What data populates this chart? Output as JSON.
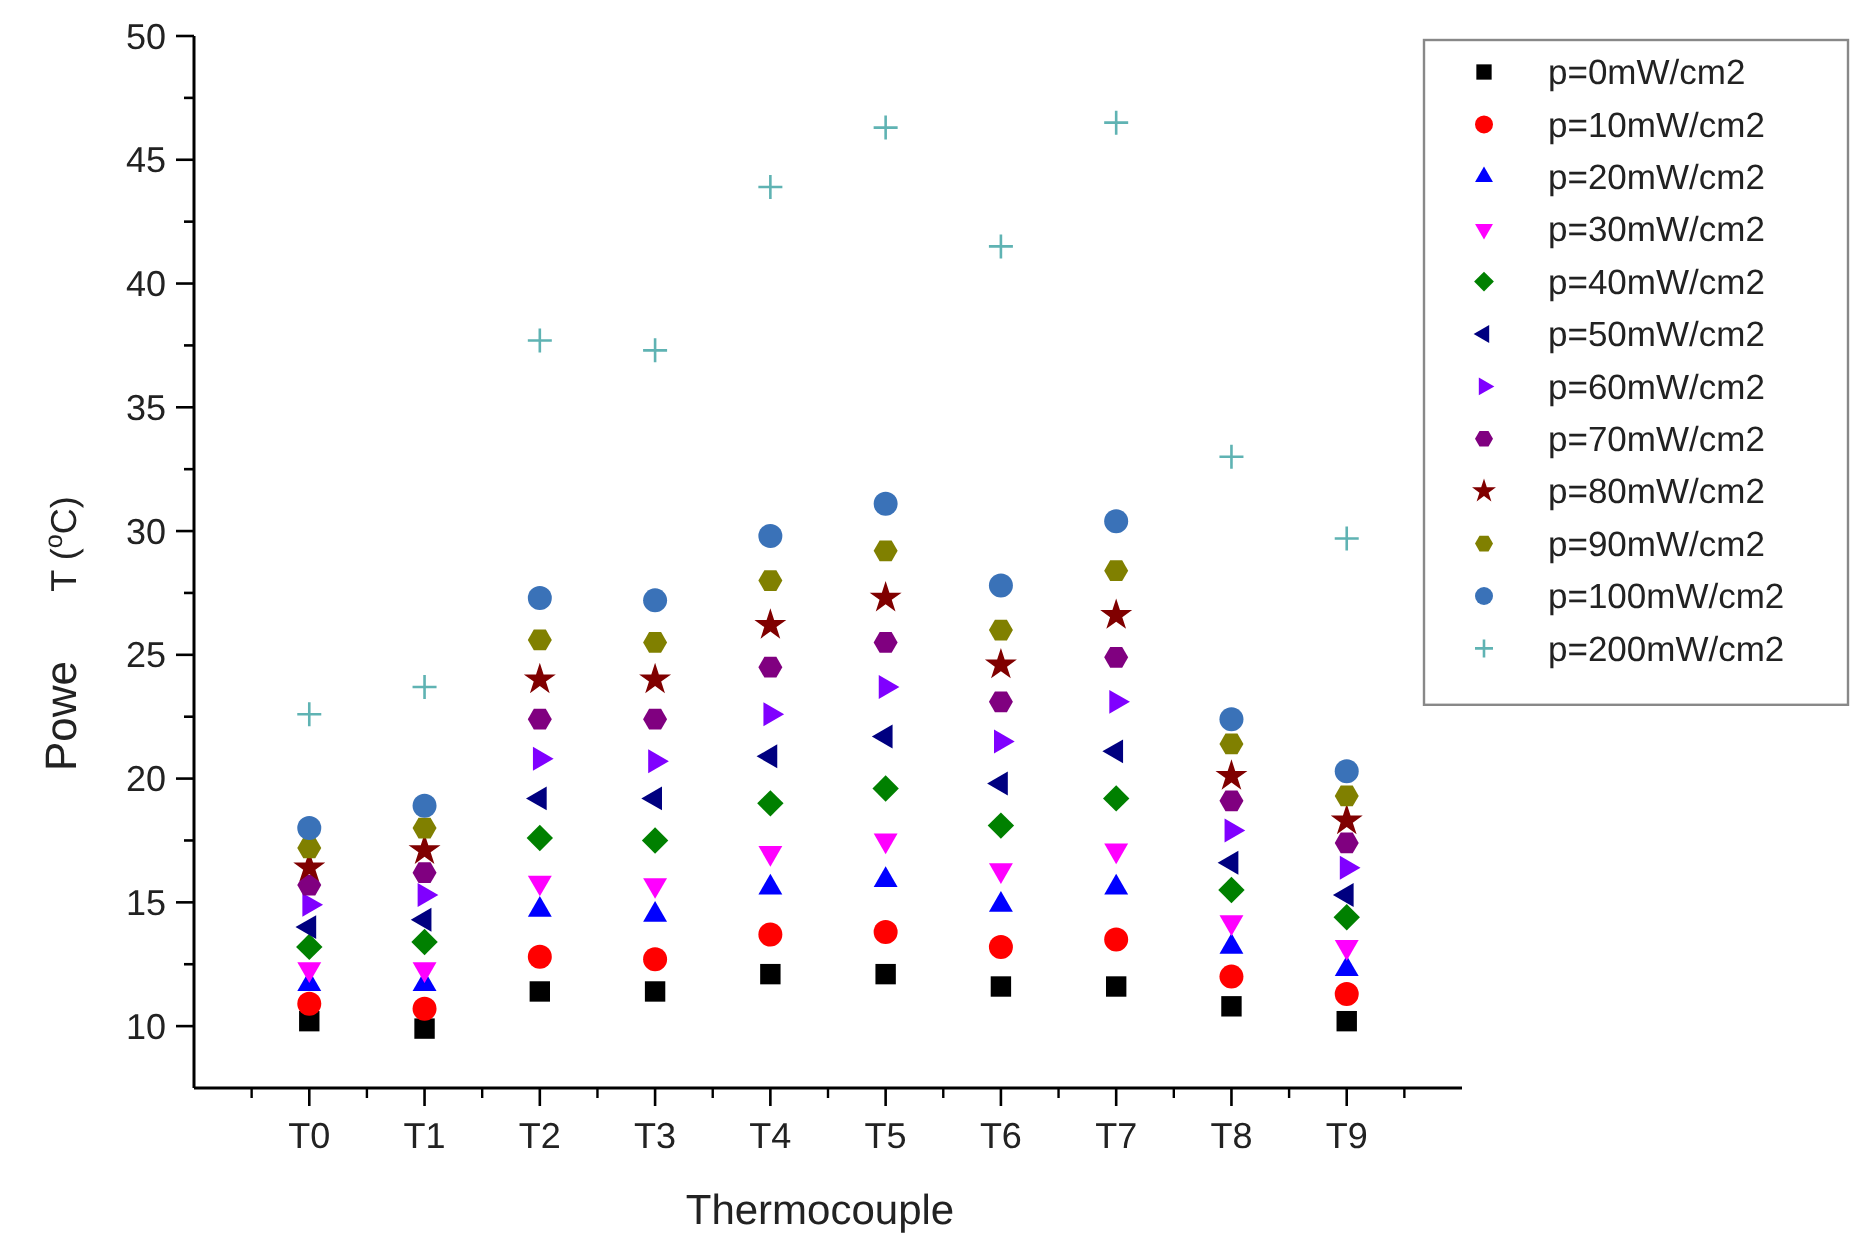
{
  "chart_data": {
    "type": "scatter",
    "xlabel": "Thermocouple",
    "ylabel": "T ($^{o}$C)",
    "annotations": [
      "Powe"
    ],
    "categories": [
      "T0",
      "T1",
      "T2",
      "T3",
      "T4",
      "T5",
      "T6",
      "T7",
      "T8",
      "T9"
    ],
    "ylim": [
      7.5,
      50
    ],
    "yticks": [
      10,
      {
        "value": 12.5,
        "label": null
      },
      15,
      {
        "value": 17.5,
        "label": null
      },
      20,
      {
        "value": 22.5,
        "label": null
      },
      25,
      {
        "value": 27.5,
        "label": null
      },
      30,
      {
        "value": 32.5,
        "label": null
      },
      35,
      {
        "value": 37.5,
        "label": null
      },
      40,
      {
        "value": 42.5,
        "label": null
      },
      45,
      {
        "value": 47.5,
        "label": null
      },
      50
    ],
    "legend": "right",
    "grid": false,
    "series": [
      {
        "name": "p=0mW/cm2",
        "color": "#000000",
        "marker": "square",
        "values": [
          10.2,
          9.9,
          11.4,
          11.4,
          12.1,
          12.1,
          11.6,
          11.6,
          10.8,
          10.2
        ]
      },
      {
        "name": "p=10mW/cm2",
        "color": "#ff0000",
        "marker": "circle",
        "values": [
          10.9,
          10.7,
          12.8,
          12.7,
          13.7,
          13.8,
          13.2,
          13.5,
          12.0,
          11.3
        ]
      },
      {
        "name": "p=20mW/cm2",
        "color": "#0000ff",
        "marker": "triangle",
        "values": [
          11.7,
          11.7,
          14.7,
          14.5,
          15.6,
          15.9,
          14.9,
          15.6,
          13.2,
          12.3
        ]
      },
      {
        "name": "p=30mW/cm2",
        "color": "#ff00ff",
        "marker": "triangle-down",
        "values": [
          12.3,
          12.3,
          15.8,
          15.7,
          17.0,
          17.5,
          16.3,
          17.1,
          14.2,
          13.2
        ]
      },
      {
        "name": "p=40mW/cm2",
        "color": "#008000",
        "marker": "diamond",
        "values": [
          13.2,
          13.4,
          17.6,
          17.5,
          19.0,
          19.6,
          18.1,
          19.2,
          15.5,
          14.4
        ]
      },
      {
        "name": "p=50mW/cm2",
        "color": "#000080",
        "marker": "triangle-left",
        "values": [
          14.0,
          14.3,
          19.2,
          19.2,
          20.9,
          21.7,
          19.8,
          21.1,
          16.6,
          15.3
        ]
      },
      {
        "name": "p=60mW/cm2",
        "color": "#8000ff",
        "marker": "triangle-right",
        "values": [
          14.9,
          15.3,
          20.8,
          20.7,
          22.6,
          23.7,
          21.5,
          23.1,
          17.9,
          16.4
        ]
      },
      {
        "name": "p=70mW/cm2",
        "color": "#800080",
        "values": [
          15.7,
          16.2,
          22.4,
          22.4,
          24.5,
          25.5,
          23.1,
          24.9,
          19.1,
          17.4
        ]
      },
      {
        "name": "p=80mW/cm2",
        "color": "#800000",
        "marker": "star",
        "values": [
          16.4,
          17.1,
          24.0,
          24.0,
          26.2,
          27.3,
          24.6,
          26.6,
          20.1,
          18.3
        ]
      },
      {
        "name": "p=90mW/cm2",
        "color": "#808000",
        "values": [
          17.2,
          18.0,
          25.6,
          25.5,
          28.0,
          29.2,
          26.0,
          28.4,
          21.4,
          19.3
        ]
      },
      {
        "name": "p=100mW/cm2",
        "color": "#3a72b8",
        "marker": "circle",
        "values": [
          18.0,
          18.9,
          27.3,
          27.2,
          29.8,
          31.1,
          27.8,
          30.4,
          22.4,
          20.3
        ]
      },
      {
        "name": "p=200mW/cm2",
        "color": "#5fb3b3",
        "marker": "cross",
        "values": [
          22.6,
          23.7,
          37.7,
          37.3,
          43.9,
          46.3,
          41.5,
          46.5,
          33.0,
          29.7
        ]
      }
    ]
  }
}
